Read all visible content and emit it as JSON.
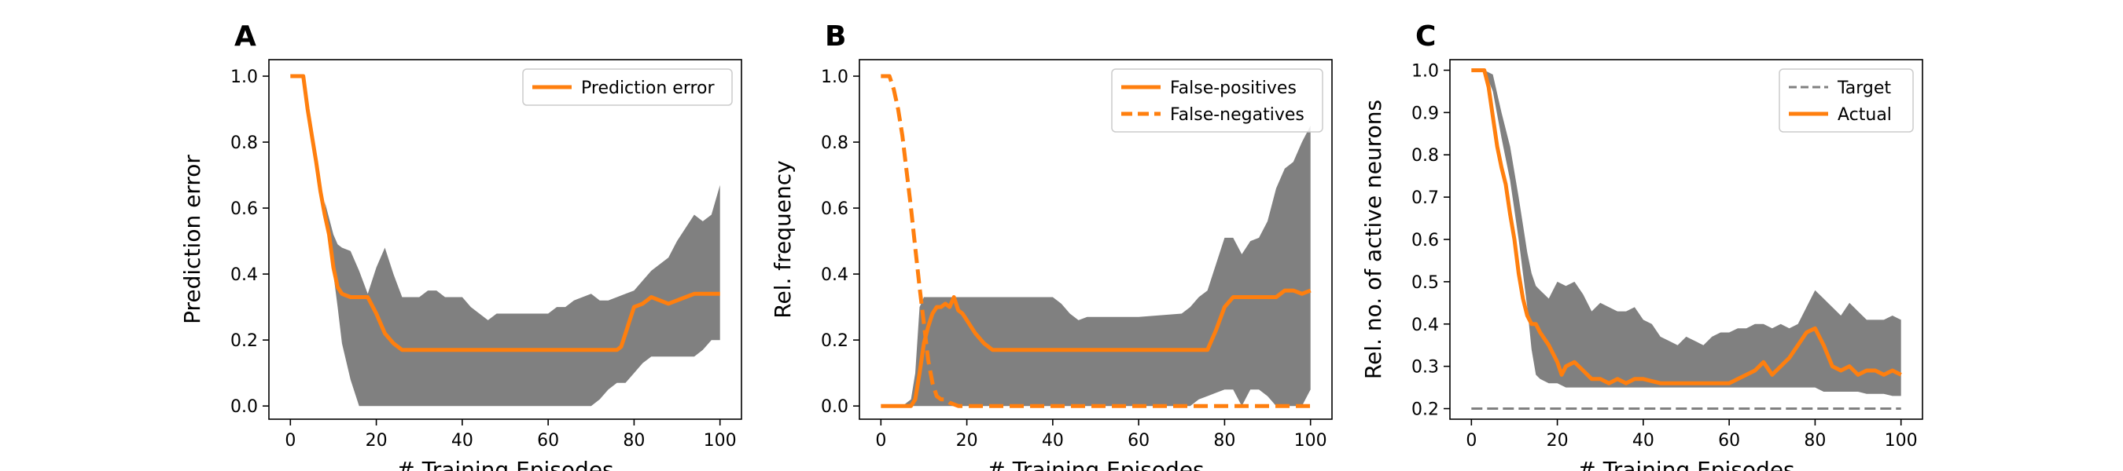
{
  "colors": {
    "accent": "#ff7f0e",
    "band": "#808080",
    "target": "#808080"
  },
  "chart_data": [
    {
      "panel": "A",
      "type": "line",
      "xlabel": "# Training Episodes",
      "ylabel": "Prediction error",
      "xlim": [
        -5,
        105
      ],
      "ylim": [
        -0.04,
        1.05
      ],
      "xticks": [
        0,
        20,
        40,
        60,
        80,
        100
      ],
      "yticks": [
        0.0,
        0.2,
        0.4,
        0.6,
        0.8,
        1.0
      ],
      "legend_position": "upper-right",
      "series": [
        {
          "name": "Prediction error",
          "style": "solid",
          "x": [
            0,
            3,
            4,
            5,
            6,
            7,
            8,
            9,
            10,
            11,
            12,
            14,
            18,
            20,
            22,
            24,
            26,
            30,
            40,
            50,
            60,
            70,
            75,
            76,
            77,
            78,
            79,
            80,
            82,
            84,
            86,
            88,
            90,
            92,
            94,
            96,
            98,
            100
          ],
          "y": [
            1.0,
            1.0,
            0.9,
            0.82,
            0.74,
            0.65,
            0.58,
            0.52,
            0.42,
            0.36,
            0.34,
            0.33,
            0.33,
            0.28,
            0.22,
            0.19,
            0.17,
            0.17,
            0.17,
            0.17,
            0.17,
            0.17,
            0.17,
            0.17,
            0.18,
            0.22,
            0.26,
            0.3,
            0.31,
            0.33,
            0.32,
            0.31,
            0.32,
            0.33,
            0.34,
            0.34,
            0.34,
            0.34
          ]
        }
      ],
      "band": {
        "x": [
          0,
          3,
          6,
          8,
          10,
          11,
          12,
          14,
          16,
          18,
          20,
          22,
          24,
          26,
          30,
          32,
          34,
          36,
          40,
          42,
          44,
          46,
          48,
          50,
          60,
          62,
          64,
          66,
          70,
          72,
          74,
          76,
          78,
          80,
          82,
          84,
          86,
          88,
          90,
          92,
          94,
          96,
          98,
          100
        ],
        "upper": [
          1.0,
          1.0,
          0.78,
          0.62,
          0.52,
          0.49,
          0.48,
          0.47,
          0.41,
          0.34,
          0.42,
          0.48,
          0.4,
          0.33,
          0.33,
          0.35,
          0.35,
          0.33,
          0.33,
          0.3,
          0.28,
          0.26,
          0.28,
          0.28,
          0.28,
          0.3,
          0.3,
          0.32,
          0.34,
          0.32,
          0.32,
          0.33,
          0.34,
          0.35,
          0.38,
          0.41,
          0.43,
          0.45,
          0.5,
          0.54,
          0.58,
          0.56,
          0.58,
          0.67
        ],
        "lower": [
          1.0,
          1.0,
          0.78,
          0.62,
          0.4,
          0.3,
          0.19,
          0.08,
          0.0,
          0.0,
          0.0,
          0.0,
          0.0,
          0.0,
          0.0,
          0.0,
          0.0,
          0.0,
          0.0,
          0.0,
          0.0,
          0.0,
          0.0,
          0.0,
          0.0,
          0.0,
          0.0,
          0.0,
          0.0,
          0.02,
          0.05,
          0.07,
          0.07,
          0.1,
          0.13,
          0.15,
          0.15,
          0.15,
          0.15,
          0.15,
          0.15,
          0.17,
          0.2,
          0.2
        ]
      }
    },
    {
      "panel": "B",
      "type": "line",
      "xlabel": "# Training Episodes",
      "ylabel": "Rel. frequency",
      "xlim": [
        -5,
        105
      ],
      "ylim": [
        -0.04,
        1.05
      ],
      "xticks": [
        0,
        20,
        40,
        60,
        80,
        100
      ],
      "yticks": [
        0.0,
        0.2,
        0.4,
        0.6,
        0.8,
        1.0
      ],
      "legend_position": "upper-right",
      "series": [
        {
          "name": "False-positives",
          "style": "solid",
          "x": [
            0,
            6,
            7,
            8,
            9,
            10,
            11,
            12,
            13,
            14,
            15,
            16,
            17,
            18,
            19,
            20,
            22,
            24,
            26,
            30,
            40,
            50,
            60,
            70,
            76,
            78,
            80,
            82,
            84,
            86,
            88,
            90,
            92,
            94,
            96,
            98,
            100
          ],
          "y": [
            0.0,
            0.0,
            0.0,
            0.02,
            0.1,
            0.19,
            0.24,
            0.28,
            0.3,
            0.3,
            0.31,
            0.3,
            0.33,
            0.29,
            0.28,
            0.26,
            0.22,
            0.19,
            0.17,
            0.17,
            0.17,
            0.17,
            0.17,
            0.17,
            0.17,
            0.23,
            0.3,
            0.33,
            0.33,
            0.33,
            0.33,
            0.33,
            0.33,
            0.35,
            0.35,
            0.34,
            0.35
          ]
        },
        {
          "name": "False-negatives",
          "style": "dashed",
          "x": [
            0,
            2,
            3,
            4,
            5,
            6,
            7,
            8,
            9,
            10,
            11,
            12,
            13,
            14,
            15,
            16,
            18,
            20,
            30,
            40,
            50,
            60,
            70,
            80,
            90,
            100
          ],
          "y": [
            1.0,
            1.0,
            0.96,
            0.9,
            0.82,
            0.71,
            0.6,
            0.48,
            0.36,
            0.25,
            0.14,
            0.07,
            0.03,
            0.02,
            0.02,
            0.01,
            0.0,
            0.0,
            0.0,
            0.0,
            0.0,
            0.0,
            0.0,
            0.0,
            0.0,
            0.0
          ]
        }
      ],
      "band": {
        "x": [
          0,
          5,
          7,
          8,
          9,
          10,
          11,
          12,
          20,
          40,
          42,
          44,
          46,
          48,
          50,
          60,
          70,
          72,
          74,
          76,
          78,
          80,
          82,
          84,
          86,
          88,
          90,
          92,
          94,
          96,
          98,
          100
        ],
        "upper": [
          0.0,
          0.0,
          0.02,
          0.1,
          0.3,
          0.33,
          0.33,
          0.33,
          0.33,
          0.33,
          0.31,
          0.28,
          0.26,
          0.27,
          0.27,
          0.27,
          0.28,
          0.3,
          0.33,
          0.35,
          0.43,
          0.51,
          0.51,
          0.46,
          0.5,
          0.51,
          0.56,
          0.66,
          0.72,
          0.74,
          0.8,
          0.85
        ],
        "lower": [
          0.0,
          0.0,
          0.0,
          0.0,
          0.0,
          0.0,
          0.0,
          0.0,
          0.0,
          0.0,
          0.0,
          0.0,
          0.0,
          0.0,
          0.0,
          0.0,
          0.0,
          0.0,
          0.02,
          0.03,
          0.04,
          0.05,
          0.05,
          0.0,
          0.05,
          0.05,
          0.03,
          0.0,
          0.0,
          0.0,
          0.0,
          0.05
        ]
      }
    },
    {
      "panel": "C",
      "type": "line",
      "xlabel": "# Training Episodes",
      "ylabel": "Rel. no. of active neurons",
      "xlim": [
        -5,
        105
      ],
      "ylim": [
        0.175,
        1.025
      ],
      "xticks": [
        0,
        20,
        40,
        60,
        80,
        100
      ],
      "yticks": [
        0.2,
        0.3,
        0.4,
        0.5,
        0.6,
        0.7,
        0.8,
        0.9,
        1.0
      ],
      "legend_position": "upper-right",
      "series": [
        {
          "name": "Target",
          "style": "dashed-thin",
          "x": [
            0,
            100
          ],
          "y": [
            0.2,
            0.2
          ]
        },
        {
          "name": "Actual",
          "style": "solid",
          "x": [
            0,
            3,
            4,
            5,
            6,
            7,
            8,
            9,
            10,
            11,
            12,
            13,
            14,
            15,
            16,
            18,
            20,
            21,
            22,
            24,
            26,
            28,
            30,
            32,
            34,
            36,
            38,
            40,
            44,
            48,
            52,
            56,
            60,
            62,
            64,
            66,
            68,
            70,
            72,
            74,
            76,
            78,
            80,
            82,
            84,
            86,
            88,
            90,
            92,
            94,
            96,
            98,
            100
          ],
          "y": [
            1.0,
            1.0,
            0.96,
            0.89,
            0.82,
            0.77,
            0.73,
            0.66,
            0.6,
            0.52,
            0.46,
            0.42,
            0.4,
            0.4,
            0.38,
            0.35,
            0.31,
            0.28,
            0.3,
            0.31,
            0.29,
            0.27,
            0.27,
            0.26,
            0.27,
            0.26,
            0.27,
            0.27,
            0.26,
            0.26,
            0.26,
            0.26,
            0.26,
            0.27,
            0.28,
            0.29,
            0.31,
            0.28,
            0.3,
            0.32,
            0.35,
            0.38,
            0.39,
            0.35,
            0.3,
            0.29,
            0.3,
            0.28,
            0.29,
            0.29,
            0.28,
            0.29,
            0.28
          ]
        }
      ],
      "band": {
        "x": [
          0,
          3,
          5,
          7,
          9,
          11,
          13,
          14,
          15,
          16,
          18,
          20,
          22,
          24,
          26,
          28,
          30,
          32,
          34,
          36,
          38,
          40,
          42,
          44,
          46,
          48,
          50,
          52,
          54,
          56,
          58,
          60,
          62,
          64,
          66,
          68,
          70,
          72,
          74,
          76,
          78,
          80,
          82,
          84,
          86,
          88,
          90,
          92,
          94,
          96,
          98,
          100
        ],
        "upper": [
          1.0,
          1.0,
          0.99,
          0.9,
          0.82,
          0.7,
          0.57,
          0.52,
          0.49,
          0.48,
          0.46,
          0.5,
          0.49,
          0.5,
          0.47,
          0.43,
          0.45,
          0.44,
          0.43,
          0.43,
          0.44,
          0.41,
          0.4,
          0.37,
          0.36,
          0.35,
          0.37,
          0.36,
          0.35,
          0.37,
          0.38,
          0.38,
          0.39,
          0.39,
          0.4,
          0.4,
          0.39,
          0.4,
          0.39,
          0.4,
          0.44,
          0.48,
          0.46,
          0.44,
          0.42,
          0.45,
          0.43,
          0.41,
          0.41,
          0.41,
          0.42,
          0.41
        ],
        "lower": [
          1.0,
          1.0,
          0.95,
          0.84,
          0.74,
          0.6,
          0.44,
          0.34,
          0.28,
          0.27,
          0.26,
          0.26,
          0.25,
          0.25,
          0.25,
          0.25,
          0.25,
          0.25,
          0.25,
          0.25,
          0.25,
          0.25,
          0.25,
          0.25,
          0.25,
          0.25,
          0.25,
          0.25,
          0.25,
          0.25,
          0.25,
          0.25,
          0.25,
          0.25,
          0.25,
          0.25,
          0.25,
          0.25,
          0.25,
          0.25,
          0.25,
          0.25,
          0.24,
          0.24,
          0.24,
          0.24,
          0.24,
          0.235,
          0.235,
          0.235,
          0.23,
          0.23
        ]
      }
    }
  ]
}
